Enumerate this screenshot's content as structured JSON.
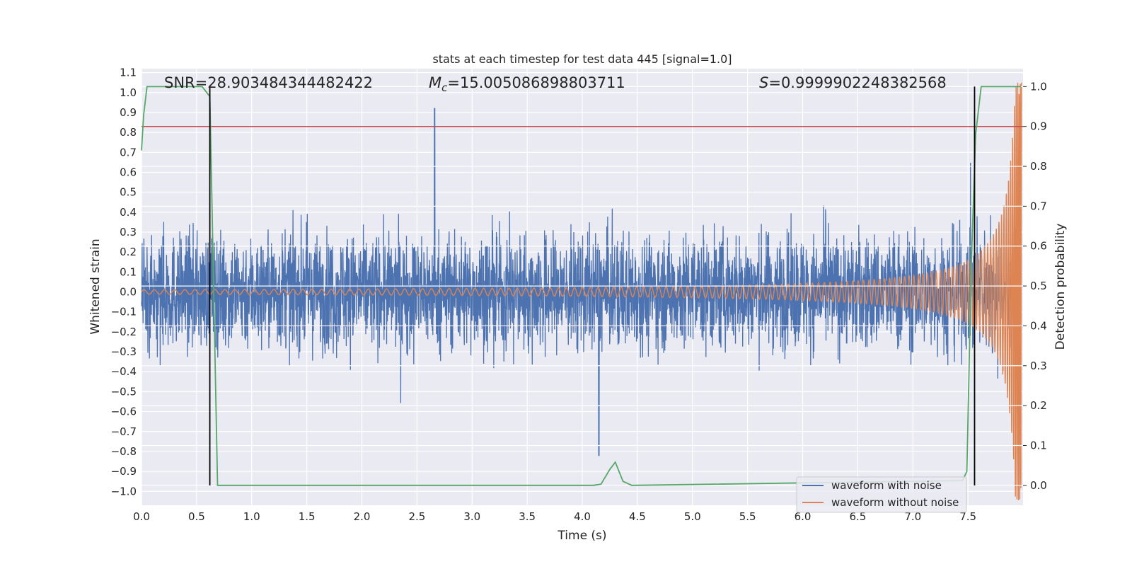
{
  "chart_data": {
    "type": "line",
    "title": "stats at each timestep for test data 445 [signal=1.0]",
    "xlabel": "Time (s)",
    "ylabel": "Whitened strain",
    "y2label": "Detection probability",
    "xlim": [
      0.0,
      8.0
    ],
    "ylim": [
      -1.07,
      1.12
    ],
    "y2lim": [
      -0.05,
      1.045
    ],
    "xticks": [
      "0.0",
      "0.5",
      "1.0",
      "1.5",
      "2.0",
      "2.5",
      "3.0",
      "3.5",
      "4.0",
      "4.5",
      "5.0",
      "5.5",
      "6.0",
      "6.5",
      "7.0",
      "7.5"
    ],
    "xtick_values": [
      0.0,
      0.5,
      1.0,
      1.5,
      2.0,
      2.5,
      3.0,
      3.5,
      4.0,
      4.5,
      5.0,
      5.5,
      6.0,
      6.5,
      7.0,
      7.5
    ],
    "yticks": [
      "1.1",
      "1.0",
      "0.9",
      "0.8",
      "0.7",
      "0.6",
      "0.5",
      "0.4",
      "0.3",
      "0.2",
      "0.1",
      "0.0",
      "−0.1",
      "−0.2",
      "−0.3",
      "−0.4",
      "−0.5",
      "−0.6",
      "−0.7",
      "−0.8",
      "−0.9",
      "−1.0"
    ],
    "ytick_values": [
      1.1,
      1.0,
      0.9,
      0.8,
      0.7,
      0.6,
      0.5,
      0.4,
      0.3,
      0.2,
      0.1,
      0.0,
      -0.1,
      -0.2,
      -0.3,
      -0.4,
      -0.5,
      -0.6,
      -0.7,
      -0.8,
      -0.9,
      -1.0
    ],
    "y2ticks": [
      "1.0",
      "0.9",
      "0.8",
      "0.7",
      "0.6",
      "0.5",
      "0.4",
      "0.3",
      "0.2",
      "0.1",
      "0.0"
    ],
    "y2tick_values": [
      1.0,
      0.9,
      0.8,
      0.7,
      0.6,
      0.5,
      0.4,
      0.3,
      0.2,
      0.1,
      0.0
    ],
    "annotations": {
      "snr": "SNR=28.903484344482422",
      "mc_symbol": "M",
      "mc_sub": "c",
      "mc_value": "=15.005086898803711",
      "s_symbol": "S",
      "s_value": "=0.9999902248382568"
    },
    "grid": true,
    "legend_position": "lower right",
    "legend": [
      {
        "label": "waveform with noise",
        "color": "#4c72b0"
      },
      {
        "label": "waveform without noise",
        "color": "#dd8452"
      }
    ],
    "series": [
      {
        "name": "waveform with noise",
        "axis": "left",
        "color": "#4c72b0",
        "description": "dense noisy strain, roughly ±0.5 with peaks up to 0.92 near t=2.65 and down to −0.82 near t=4.15"
      },
      {
        "name": "waveform without noise",
        "axis": "left",
        "color": "#dd8452",
        "description": "chirp: amplitude ~0.01 at t=0 growing to ~1.0 at t=7.98, frequency increasing"
      },
      {
        "axis": "right",
        "color": "#55a868",
        "x": [
          0.0,
          0.02,
          0.05,
          0.1,
          0.55,
          0.62,
          0.69,
          4.1,
          4.17,
          4.25,
          4.3,
          4.37,
          4.45,
          7.45,
          7.49,
          7.53,
          7.57,
          7.62,
          7.98
        ],
        "y": [
          0.84,
          0.93,
          1.0,
          1.0,
          1.0,
          0.975,
          0.0,
          0.0,
          0.003,
          0.04,
          0.058,
          0.01,
          0.0,
          0.012,
          0.035,
          0.55,
          0.88,
          1.0,
          1.0
        ]
      }
    ],
    "threshold": {
      "axis": "right",
      "y": 0.9,
      "color": "#c44e52"
    },
    "vertical_lines": [
      {
        "x": 0.62,
        "color": "#000000"
      },
      {
        "x": 7.56,
        "color": "#000000"
      }
    ]
  }
}
